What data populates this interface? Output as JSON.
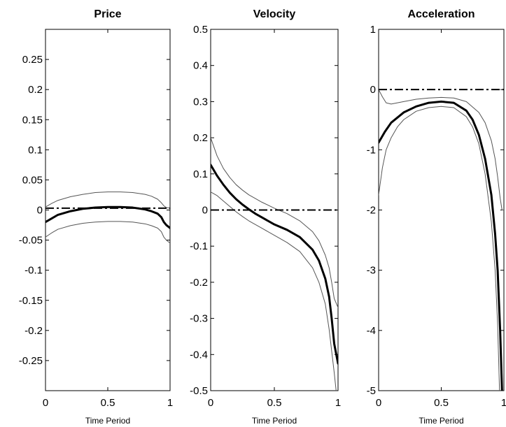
{
  "chart_data": [
    {
      "type": "line",
      "title": "Price",
      "xlabel": "Time Period",
      "ylabel": "",
      "xlim": [
        0,
        1
      ],
      "ylim": [
        -0.3,
        0.3
      ],
      "xticks": [
        0,
        0.5,
        1
      ],
      "xtick_labels": [
        "0",
        "0.5",
        "1"
      ],
      "yticks": [
        0.25,
        0.2,
        0.15,
        0.1,
        0.05,
        0,
        -0.05,
        -0.1,
        -0.15,
        -0.2,
        -0.25
      ],
      "ytick_labels": [
        "0.25",
        "0.2",
        "0.15",
        "0.1",
        "0.05",
        "0",
        "-0.05",
        "-0.1",
        "-0.15",
        "-0.2",
        "-0.25"
      ],
      "grid": false,
      "series": [
        {
          "role": "estimate",
          "color": "#000000",
          "x": [
            0,
            0.05,
            0.1,
            0.2,
            0.3,
            0.4,
            0.5,
            0.6,
            0.7,
            0.8,
            0.85,
            0.9,
            0.93,
            0.95,
            0.97,
            1.0
          ],
          "y": [
            -0.02,
            -0.014,
            -0.008,
            -0.002,
            0.002,
            0.004,
            0.005,
            0.005,
            0.004,
            0.001,
            -0.002,
            -0.006,
            -0.012,
            -0.02,
            -0.025,
            -0.03
          ]
        },
        {
          "role": "upper",
          "color": "#555555",
          "x": [
            0,
            0.05,
            0.1,
            0.2,
            0.3,
            0.4,
            0.5,
            0.6,
            0.7,
            0.8,
            0.85,
            0.9,
            0.93,
            0.95,
            0.97,
            1.0
          ],
          "y": [
            0.005,
            0.011,
            0.016,
            0.022,
            0.026,
            0.029,
            0.03,
            0.03,
            0.029,
            0.026,
            0.023,
            0.018,
            0.012,
            0.007,
            0.004,
            0.003
          ]
        },
        {
          "role": "lower",
          "color": "#555555",
          "x": [
            0,
            0.05,
            0.1,
            0.2,
            0.3,
            0.4,
            0.5,
            0.6,
            0.7,
            0.8,
            0.85,
            0.9,
            0.93,
            0.95,
            0.97,
            1.0
          ],
          "y": [
            -0.045,
            -0.038,
            -0.032,
            -0.026,
            -0.022,
            -0.02,
            -0.019,
            -0.019,
            -0.02,
            -0.023,
            -0.026,
            -0.03,
            -0.036,
            -0.045,
            -0.05,
            -0.055
          ]
        },
        {
          "role": "zero",
          "color": "#000000",
          "dash": "dashdot",
          "x": [
            0,
            1
          ],
          "y": [
            0.003,
            0.003
          ]
        }
      ]
    },
    {
      "type": "line",
      "title": "Velocity",
      "xlabel": "Time Period",
      "ylabel": "",
      "xlim": [
        0,
        1
      ],
      "ylim": [
        -0.5,
        0.5
      ],
      "xticks": [
        0,
        0.5,
        1
      ],
      "xtick_labels": [
        "0",
        "0.5",
        "1"
      ],
      "yticks": [
        0.5,
        0.4,
        0.3,
        0.2,
        0.1,
        0,
        -0.1,
        -0.2,
        -0.3,
        -0.4,
        -0.5
      ],
      "ytick_labels": [
        "0.5",
        "0.4",
        "0.3",
        "0.2",
        "0.1",
        "0",
        "-0.1",
        "-0.2",
        "-0.3",
        "-0.4",
        "-0.5"
      ],
      "grid": false,
      "series": [
        {
          "role": "estimate",
          "color": "#000000",
          "x": [
            0,
            0.05,
            0.1,
            0.15,
            0.2,
            0.25,
            0.3,
            0.35,
            0.4,
            0.5,
            0.6,
            0.7,
            0.8,
            0.85,
            0.9,
            0.93,
            0.95,
            0.97,
            1.0
          ],
          "y": [
            0.125,
            0.095,
            0.07,
            0.048,
            0.03,
            0.015,
            0.002,
            -0.01,
            -0.02,
            -0.04,
            -0.055,
            -0.075,
            -0.11,
            -0.14,
            -0.19,
            -0.24,
            -0.3,
            -0.37,
            -0.425
          ]
        },
        {
          "role": "upper",
          "color": "#555555",
          "x": [
            0,
            0.05,
            0.1,
            0.15,
            0.2,
            0.25,
            0.3,
            0.35,
            0.4,
            0.5,
            0.6,
            0.7,
            0.8,
            0.85,
            0.9,
            0.93,
            0.95,
            0.97,
            1.0
          ],
          "y": [
            0.2,
            0.15,
            0.115,
            0.09,
            0.07,
            0.055,
            0.042,
            0.032,
            0.022,
            0.005,
            -0.01,
            -0.03,
            -0.06,
            -0.085,
            -0.125,
            -0.16,
            -0.2,
            -0.245,
            -0.27
          ]
        },
        {
          "role": "lower",
          "color": "#555555",
          "x": [
            0,
            0.05,
            0.1,
            0.15,
            0.2,
            0.25,
            0.3,
            0.35,
            0.4,
            0.5,
            0.6,
            0.7,
            0.8,
            0.85,
            0.9,
            0.93,
            0.95,
            0.97,
            0.985
          ],
          "y": [
            0.05,
            0.04,
            0.025,
            0.01,
            -0.005,
            -0.018,
            -0.03,
            -0.04,
            -0.05,
            -0.07,
            -0.09,
            -0.115,
            -0.16,
            -0.2,
            -0.26,
            -0.33,
            -0.39,
            -0.45,
            -0.5
          ]
        },
        {
          "role": "zero",
          "color": "#000000",
          "dash": "dashdot",
          "x": [
            0,
            1
          ],
          "y": [
            0,
            0
          ]
        }
      ]
    },
    {
      "type": "line",
      "title": "Acceleration",
      "xlabel": "Time Period",
      "ylabel": "",
      "xlim": [
        0,
        1
      ],
      "ylim": [
        -5,
        1
      ],
      "xticks": [
        0,
        0.5,
        1
      ],
      "xtick_labels": [
        "0",
        "0.5",
        "1"
      ],
      "yticks": [
        1,
        0,
        -1,
        -2,
        -3,
        -4,
        -5
      ],
      "ytick_labels": [
        "1",
        "0",
        "-1",
        "-2",
        "-3",
        "-4",
        "-5"
      ],
      "grid": false,
      "series": [
        {
          "role": "estimate",
          "color": "#000000",
          "x": [
            0,
            0.05,
            0.1,
            0.2,
            0.3,
            0.4,
            0.5,
            0.6,
            0.7,
            0.75,
            0.8,
            0.85,
            0.9,
            0.93,
            0.95,
            0.97,
            0.985
          ],
          "y": [
            -0.88,
            -0.7,
            -0.55,
            -0.38,
            -0.28,
            -0.22,
            -0.2,
            -0.22,
            -0.35,
            -0.5,
            -0.75,
            -1.15,
            -1.75,
            -2.4,
            -3.0,
            -4.0,
            -5.0
          ]
        },
        {
          "role": "upper",
          "color": "#555555",
          "x": [
            0,
            0.03,
            0.06,
            0.1,
            0.2,
            0.3,
            0.4,
            0.5,
            0.6,
            0.7,
            0.8,
            0.85,
            0.9,
            0.93,
            0.95,
            0.97,
            0.985,
            1.0
          ],
          "y": [
            0,
            -0.12,
            -0.22,
            -0.24,
            -0.2,
            -0.16,
            -0.14,
            -0.13,
            -0.14,
            -0.2,
            -0.38,
            -0.55,
            -0.85,
            -1.15,
            -1.45,
            -1.8,
            -2.0,
            -2.0
          ]
        },
        {
          "role": "lower",
          "color": "#555555",
          "x": [
            0,
            0.03,
            0.06,
            0.1,
            0.15,
            0.2,
            0.3,
            0.4,
            0.5,
            0.6,
            0.7,
            0.75,
            0.8,
            0.85,
            0.9,
            0.93,
            0.95,
            0.965
          ],
          "y": [
            -1.75,
            -1.3,
            -1.0,
            -0.8,
            -0.62,
            -0.5,
            -0.36,
            -0.3,
            -0.28,
            -0.3,
            -0.45,
            -0.62,
            -0.9,
            -1.4,
            -2.2,
            -3.0,
            -3.9,
            -5.0
          ]
        },
        {
          "role": "zero",
          "color": "#000000",
          "dash": "dashdot",
          "x": [
            0,
            1
          ],
          "y": [
            0,
            0
          ]
        }
      ]
    }
  ]
}
